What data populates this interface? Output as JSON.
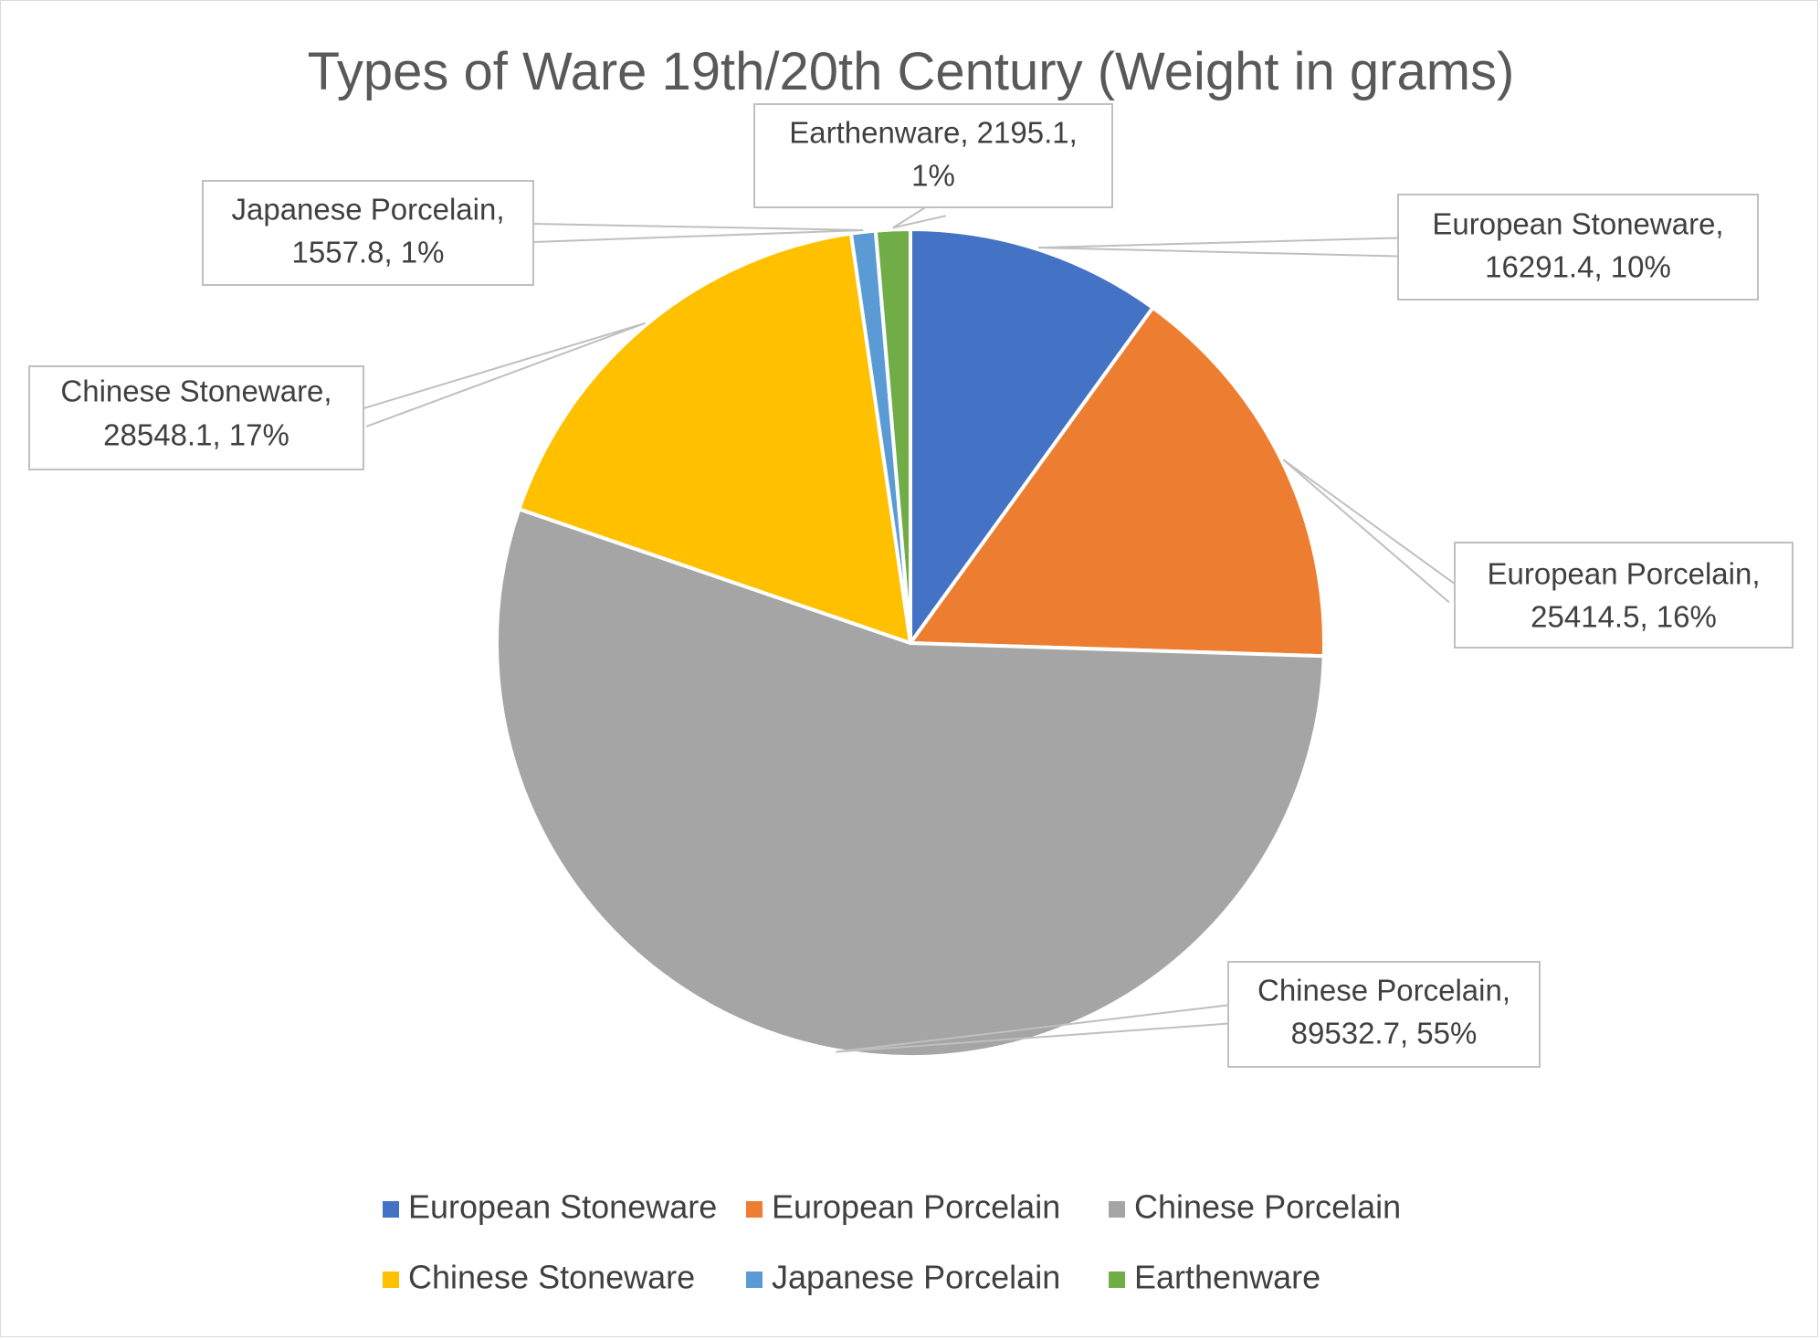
{
  "chart_data": {
    "type": "pie",
    "title": "Types of Ware 19th/20th Century (Weight in grams)",
    "slices": [
      {
        "label": "European Stoneware",
        "value": 16291.4,
        "percent": "10%",
        "color": "#4472C4"
      },
      {
        "label": "European Porcelain",
        "value": 25414.5,
        "percent": "16%",
        "color": "#ED7D31"
      },
      {
        "label": "Chinese Porcelain",
        "value": 89532.7,
        "percent": "55%",
        "color": "#A5A5A5"
      },
      {
        "label": "Chinese Stoneware",
        "value": 28548.1,
        "percent": "17%",
        "color": "#FFC000"
      },
      {
        "label": "Japanese Porcelain",
        "value": 1557.8,
        "percent": "1%",
        "color": "#5B9BD5"
      },
      {
        "label": "Earthenware",
        "value": 2195.1,
        "percent": "1%",
        "color": "#70AD47"
      }
    ],
    "data_labels": [
      {
        "line1": "European Stoneware,",
        "line2": "16291.4, 10%"
      },
      {
        "line1": "European Porcelain,",
        "line2": "25414.5, 16%"
      },
      {
        "line1": "Chinese Porcelain,",
        "line2": "89532.7, 55%"
      },
      {
        "line1": "Chinese Stoneware,",
        "line2": "28548.1, 17%"
      },
      {
        "line1": "Japanese Porcelain,",
        "line2": "1557.8, 1%"
      },
      {
        "line1": "Earthenware, 2195.1,",
        "line2": "1%"
      }
    ],
    "legend": {
      "position": "bottom",
      "items": [
        "European Stoneware",
        "European Porcelain",
        "Chinese Porcelain",
        "Chinese Stoneware",
        "Japanese Porcelain",
        "Earthenware"
      ]
    }
  }
}
